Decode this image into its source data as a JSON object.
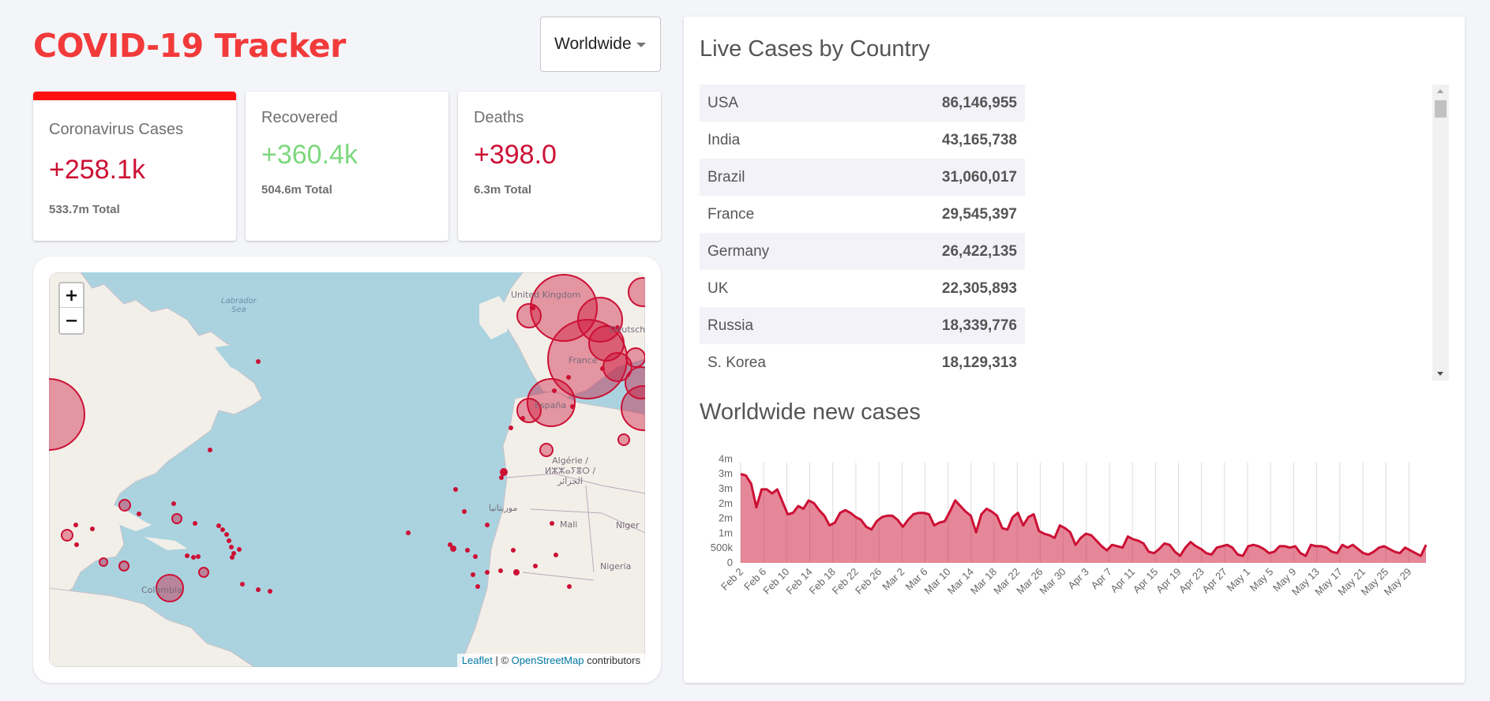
{
  "app": {
    "title": "COVID-19 Tracker"
  },
  "country_select": {
    "value": "Worldwide"
  },
  "stats": [
    {
      "title": "Coronavirus Cases",
      "value": "+258.1k",
      "total": "533.7m Total"
    },
    {
      "title": "Recovered",
      "value": "+360.4k",
      "total": "504.6m Total"
    },
    {
      "title": "Deaths",
      "value": "+398.0",
      "total": "6.3m Total"
    }
  ],
  "colors": {
    "brand": "#f23a3a",
    "cases": "#cc1034",
    "recovered": "#7dd87d",
    "active_border": "#ff1111"
  },
  "map": {
    "zoom_in": "+",
    "zoom_out": "−",
    "attribution_leaflet": "Leaflet",
    "attribution_sep": " | © ",
    "attribution_osm": "OpenStreetMap",
    "attribution_tail": " contributors",
    "labels": {
      "labrador": "Labrador\nSea",
      "uk": "United Kingdom",
      "deutsch": "Deutschl",
      "france": "France",
      "espana": "España",
      "algerie": "Algérie /\nⵍⵣⵣⴰⵢⴻⵔ /\nالجزائر",
      "mauritania": "موريتانيا",
      "mali": "Mali",
      "niger": "Niger",
      "nigeria": "Nigeria",
      "colombia": "Colombia"
    }
  },
  "table": {
    "title": "Live Cases by Country",
    "rows": [
      {
        "country": "USA",
        "cases": "86,146,955"
      },
      {
        "country": "India",
        "cases": "43,165,738"
      },
      {
        "country": "Brazil",
        "cases": "31,060,017"
      },
      {
        "country": "France",
        "cases": "29,545,397"
      },
      {
        "country": "Germany",
        "cases": "26,422,135"
      },
      {
        "country": "UK",
        "cases": "22,305,893"
      },
      {
        "country": "Russia",
        "cases": "18,339,776"
      },
      {
        "country": "S. Korea",
        "cases": "18,129,313"
      }
    ]
  },
  "chart_title": "Worldwide new cases",
  "chart_data": {
    "type": "area",
    "title": "Worldwide new cases",
    "y_tick_labels": [
      "0",
      "500k",
      "1m",
      "2m",
      "2m",
      "3m",
      "3m",
      "4m"
    ],
    "ylim": [
      0,
      3500000
    ],
    "x_tick_labels": [
      "Feb 2",
      "Feb 6",
      "Feb 10",
      "Feb 14",
      "Feb 18",
      "Feb 22",
      "Feb 26",
      "Mar 2",
      "Mar 6",
      "Mar 10",
      "Mar 14",
      "Mar 18",
      "Mar 22",
      "Mar 26",
      "Mar 30",
      "Apr 3",
      "Apr 7",
      "Apr 11",
      "Apr 15",
      "Apr 19",
      "Apr 23",
      "Apr 27",
      "May 1",
      "May 5",
      "May 9",
      "May 13",
      "May 17",
      "May 21",
      "May 25",
      "May 29"
    ],
    "grid": "vertical",
    "color": "#cc1034",
    "fill": "rgba(204,16,52,0.5)",
    "series": [
      {
        "values": [
          3200000,
          3150000,
          2850000,
          2000000,
          2650000,
          2650000,
          2500000,
          2650000,
          2200000,
          1750000,
          1800000,
          2050000,
          1950000,
          2250000,
          2150000,
          1900000,
          1700000,
          1350000,
          1450000,
          1800000,
          1900000,
          1800000,
          1650000,
          1550000,
          1300000,
          1200000,
          1500000,
          1650000,
          1700000,
          1700000,
          1550000,
          1300000,
          1550000,
          1750000,
          1800000,
          1800000,
          1750000,
          1350000,
          1450000,
          1500000,
          1850000,
          2250000,
          2050000,
          1850000,
          1700000,
          1100000,
          1750000,
          1950000,
          1850000,
          1700000,
          1250000,
          1200000,
          1650000,
          1800000,
          1350000,
          1650000,
          1750000,
          1150000,
          1050000,
          1000000,
          900000,
          1350000,
          1250000,
          1100000,
          650000,
          900000,
          1050000,
          1000000,
          800000,
          600000,
          450000,
          650000,
          600000,
          550000,
          950000,
          850000,
          800000,
          700000,
          400000,
          350000,
          500000,
          700000,
          650000,
          400000,
          250000,
          550000,
          750000,
          600000,
          500000,
          350000,
          300000,
          550000,
          600000,
          650000,
          550000,
          300000,
          250000,
          600000,
          650000,
          600000,
          500000,
          350000,
          400000,
          600000,
          600000,
          550000,
          600000,
          350000,
          250000,
          650000,
          600000,
          600000,
          550000,
          400000,
          350000,
          650000,
          550000,
          650000,
          500000,
          350000,
          300000,
          400000,
          550000,
          600000,
          500000,
          400000,
          350000,
          550000,
          450000,
          350000,
          250000,
          650000
        ]
      }
    ]
  }
}
